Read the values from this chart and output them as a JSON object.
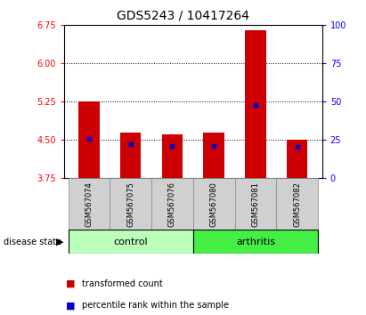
{
  "title": "GDS5243 / 10417264",
  "samples": [
    "GSM567074",
    "GSM567075",
    "GSM567076",
    "GSM567080",
    "GSM567081",
    "GSM567082"
  ],
  "groups": [
    "control",
    "control",
    "control",
    "arthritis",
    "arthritis",
    "arthritis"
  ],
  "bar_bottoms": [
    3.75,
    3.75,
    3.75,
    3.75,
    3.75,
    3.75
  ],
  "bar_tops": [
    5.25,
    4.65,
    4.6,
    4.65,
    6.65,
    4.5
  ],
  "blue_dot_values": [
    4.52,
    4.42,
    4.38,
    4.38,
    5.18,
    4.37
  ],
  "ylim_left": [
    3.75,
    6.75
  ],
  "ylim_right": [
    0,
    100
  ],
  "yticks_left": [
    3.75,
    4.5,
    5.25,
    6.0,
    6.75
  ],
  "yticks_right": [
    0,
    25,
    50,
    75,
    100
  ],
  "hlines": [
    4.5,
    5.25,
    6.0
  ],
  "bar_color": "#cc0000",
  "dot_color": "#0000cc",
  "bar_width": 0.5,
  "control_color": "#bbffbb",
  "arthritis_color": "#44ee44",
  "legend_red": "transformed count",
  "legend_blue": "percentile rank within the sample",
  "title_fontsize": 10,
  "tick_fontsize": 7,
  "sample_fontsize": 6,
  "group_fontsize": 8,
  "legend_fontsize": 7
}
